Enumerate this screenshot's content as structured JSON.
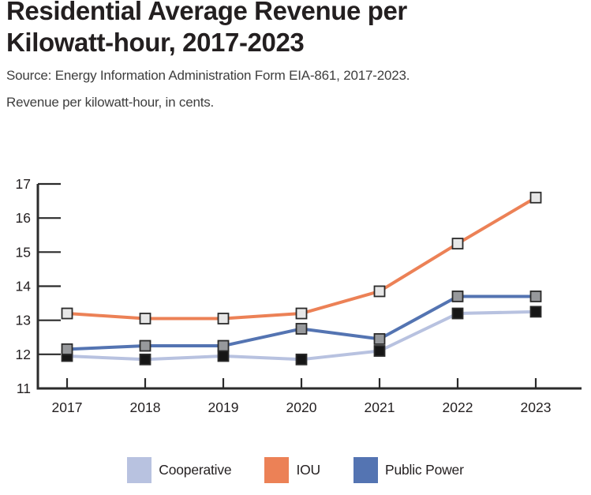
{
  "header": {
    "title": "Residential Average Revenue per Kilowatt-hour, 2017-2023",
    "source": "Source: Energy Information Administration Form EIA-861, 2017-2023.",
    "subtitle": "Revenue per kilowatt-hour, in cents."
  },
  "colors": {
    "title_text": "#231f20",
    "body_text": "#3e3e3e",
    "axis": "#2b2b2b",
    "background": "#ffffff",
    "cooperative": "#b8c2e0",
    "iou": "#ec8156",
    "public_power": "#5474b2"
  },
  "chart_data": {
    "type": "line",
    "title": "Residential Average Revenue per Kilowatt-hour, 2017-2023",
    "xlabel": "",
    "ylabel": "Revenue per kilowatt-hour, in cents",
    "x": [
      "2017",
      "2018",
      "2019",
      "2020",
      "2021",
      "2022",
      "2023"
    ],
    "ylim": [
      11,
      17
    ],
    "yticks": [
      11,
      12,
      13,
      14,
      15,
      16,
      17
    ],
    "grid": false,
    "legend_position": "bottom",
    "marker_shape": "square",
    "series": [
      {
        "name": "Cooperative",
        "color": "#b8c2e0",
        "marker_fill": "#161616",
        "values": [
          11.95,
          11.85,
          11.95,
          11.85,
          12.1,
          13.2,
          13.25
        ]
      },
      {
        "name": "IOU",
        "color": "#ec8156",
        "marker_fill": "#e7e7e7",
        "values": [
          13.2,
          13.05,
          13.05,
          13.2,
          13.85,
          15.25,
          16.6
        ]
      },
      {
        "name": "Public Power",
        "color": "#5474b2",
        "marker_fill": "#97999c",
        "values": [
          12.15,
          12.25,
          12.25,
          12.75,
          12.45,
          13.7,
          13.7
        ]
      }
    ]
  }
}
